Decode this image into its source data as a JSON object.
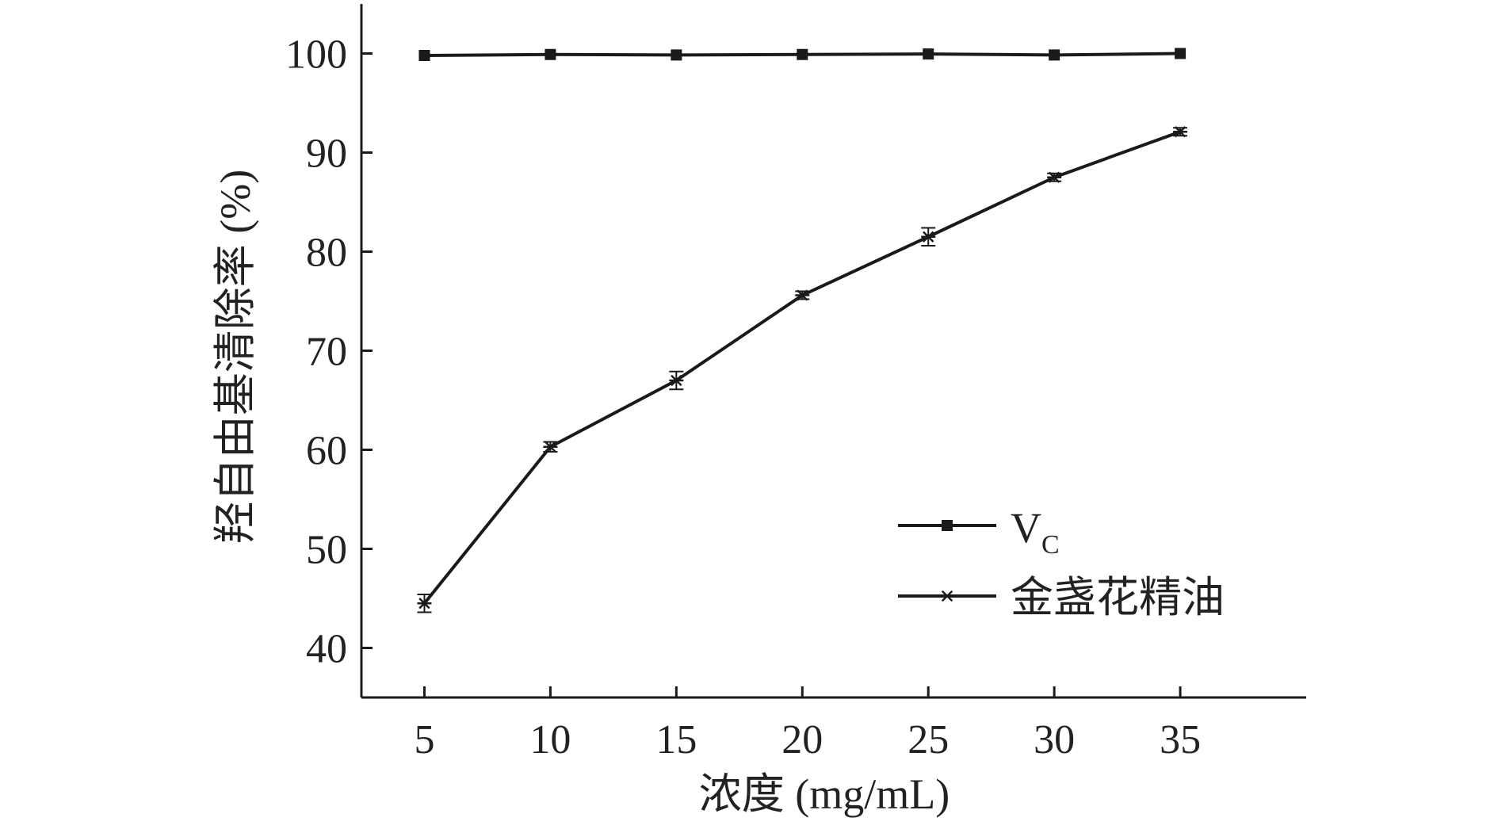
{
  "chart_data": {
    "type": "line",
    "title": "",
    "xlabel": "浓度 (mg/mL)",
    "ylabel": "羟自由基清除率 (%)",
    "x": [
      5,
      10,
      15,
      20,
      25,
      30,
      35
    ],
    "xlim": [
      2.5,
      40
    ],
    "ylim": [
      35,
      105
    ],
    "xticks": [
      "5",
      "10",
      "15",
      "20",
      "25",
      "30",
      "35"
    ],
    "yticks": [
      "40",
      "50",
      "60",
      "70",
      "80",
      "90",
      "100"
    ],
    "grid": false,
    "legend_position": "lower-right",
    "series": [
      {
        "name": "V",
        "name_sub": "C",
        "marker": "square",
        "values": [
          99.8,
          99.9,
          99.85,
          99.9,
          99.95,
          99.85,
          100.0
        ],
        "errors": [
          0,
          0,
          0,
          0,
          0,
          0,
          0
        ]
      },
      {
        "name": "金盏花精油",
        "marker": "asterisk",
        "values": [
          44.5,
          60.3,
          67.0,
          75.6,
          81.5,
          87.5,
          92.1
        ],
        "errors": [
          0.9,
          0.5,
          0.9,
          0.4,
          0.9,
          0.4,
          0.4
        ]
      }
    ],
    "colors": {
      "line": "#1a1a1a"
    }
  }
}
